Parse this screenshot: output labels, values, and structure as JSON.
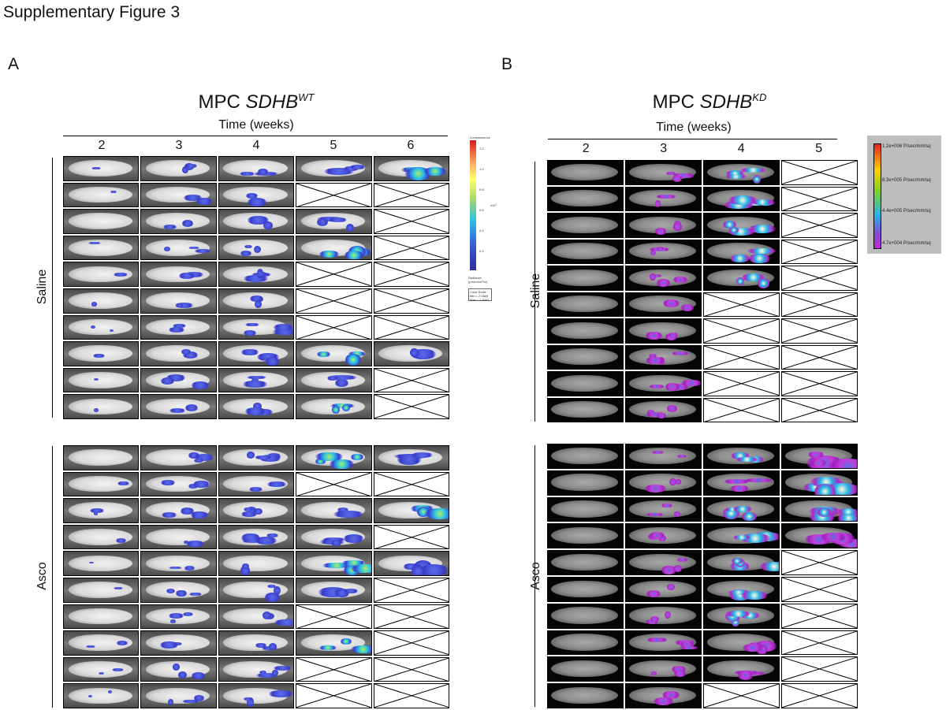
{
  "figure_title": "Supplementary Figure 3",
  "panelA": {
    "letter": "A",
    "title_prefix": "MPC ",
    "gene": "SDHB",
    "superscript": "WT",
    "time_label": "Time (weeks)",
    "weeks": [
      "2",
      "3",
      "4",
      "5",
      "6"
    ],
    "groups": [
      {
        "label": "Saline",
        "rows": [
          [
            1,
            1,
            1,
            1,
            1
          ],
          [
            1,
            1,
            1,
            0,
            0
          ],
          [
            1,
            1,
            1,
            1,
            0
          ],
          [
            1,
            1,
            1,
            1,
            0
          ],
          [
            1,
            1,
            1,
            0,
            0
          ],
          [
            1,
            1,
            1,
            0,
            0
          ],
          [
            1,
            1,
            1,
            0,
            0
          ],
          [
            1,
            1,
            1,
            1,
            1
          ],
          [
            1,
            1,
            1,
            1,
            0
          ],
          [
            1,
            1,
            1,
            1,
            0
          ]
        ]
      },
      {
        "label": "Asco",
        "rows": [
          [
            1,
            1,
            1,
            1,
            1
          ],
          [
            1,
            1,
            1,
            0,
            0
          ],
          [
            1,
            1,
            1,
            1,
            1
          ],
          [
            1,
            1,
            1,
            1,
            0
          ],
          [
            1,
            1,
            1,
            1,
            1
          ],
          [
            1,
            1,
            1,
            1,
            0
          ],
          [
            1,
            1,
            1,
            0,
            0
          ],
          [
            1,
            1,
            1,
            1,
            0
          ],
          [
            1,
            1,
            1,
            0,
            0
          ],
          [
            1,
            1,
            1,
            0,
            0
          ]
        ]
      }
    ],
    "scale": {
      "header": "Luminescence",
      "unit_label": "x10⁷",
      "ticks": [
        "1.2",
        "1.0",
        "0.8",
        "0.6",
        "0.4",
        "0.2"
      ],
      "footer": "Radiance (p/sec/cm²/sr)",
      "color_scale": "Color Scale",
      "min": "Min = 2.06e6",
      "max": "Max = 1.40e7"
    }
  },
  "panelB": {
    "letter": "B",
    "title_prefix": "MPC ",
    "gene": "SDHB",
    "superscript": "KD",
    "time_label": "Time (weeks)",
    "weeks": [
      "2",
      "3",
      "4",
      "5"
    ],
    "groups": [
      {
        "label": "Saline",
        "rows": [
          [
            1,
            1,
            1,
            0
          ],
          [
            1,
            1,
            1,
            0
          ],
          [
            1,
            1,
            1,
            0
          ],
          [
            1,
            1,
            1,
            0
          ],
          [
            1,
            1,
            1,
            0
          ],
          [
            1,
            1,
            0,
            0
          ],
          [
            1,
            1,
            0,
            0
          ],
          [
            1,
            1,
            0,
            0
          ],
          [
            1,
            1,
            0,
            0
          ],
          [
            1,
            1,
            0,
            0
          ]
        ]
      },
      {
        "label": "Asco",
        "rows": [
          [
            1,
            1,
            1,
            1
          ],
          [
            1,
            1,
            1,
            1
          ],
          [
            1,
            1,
            1,
            1
          ],
          [
            1,
            1,
            1,
            1
          ],
          [
            1,
            1,
            1,
            0
          ],
          [
            1,
            1,
            1,
            0
          ],
          [
            1,
            1,
            1,
            0
          ],
          [
            1,
            1,
            1,
            0
          ],
          [
            1,
            1,
            1,
            0
          ],
          [
            1,
            1,
            0,
            0
          ]
        ]
      }
    ],
    "scale": {
      "labels": [
        "1.2e+006 P/sec/mm/sq",
        "8.3e+005 P/sec/mm/sq",
        "4.4e+005 P/sec/mm/sq",
        "4.7e+004 P/sec/mm/sq"
      ]
    }
  }
}
